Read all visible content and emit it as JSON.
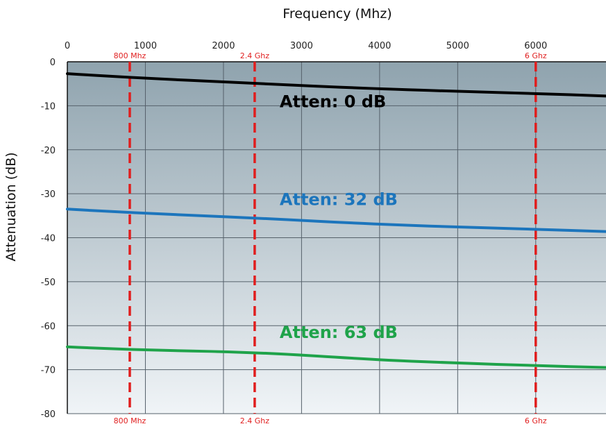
{
  "chart_data": {
    "type": "line",
    "title": "",
    "xlabel": "Frequency (Mhz)",
    "ylabel": "Attenuation (dB)",
    "xlim": [
      0,
      6900
    ],
    "ylim": [
      -80,
      0
    ],
    "x_ticks": [
      0,
      1000,
      2000,
      3000,
      4000,
      5000,
      6000
    ],
    "y_ticks": [
      0,
      -10,
      -20,
      -30,
      -40,
      -50,
      -60,
      -70,
      -80
    ],
    "grid": true,
    "background": {
      "top_color": "#8fa3ae",
      "bottom_color": "#f0f4f7"
    },
    "grid_color": "#55606a",
    "markers": [
      {
        "x": 800,
        "label": "800 Mhz",
        "color": "#e01e1e"
      },
      {
        "x": 2400,
        "label": "2.4 Ghz",
        "color": "#e01e1e"
      },
      {
        "x": 6000,
        "label": "6 Ghz",
        "color": "#e01e1e"
      }
    ],
    "series": [
      {
        "name": "Atten: 0 dB",
        "color": "#000000",
        "label_pos": {
          "x": 2720,
          "y": -10.3
        },
        "points": [
          [
            0,
            -2.7
          ],
          [
            800,
            -3.6
          ],
          [
            2400,
            -4.9
          ],
          [
            4000,
            -6.2
          ],
          [
            6000,
            -7.2
          ],
          [
            6900,
            -7.8
          ]
        ]
      },
      {
        "name": "Atten: 32 dB",
        "color": "#1c75bc",
        "label_pos": {
          "x": 2720,
          "y": -32.6
        },
        "points": [
          [
            0,
            -33.5
          ],
          [
            800,
            -34.3
          ],
          [
            2400,
            -35.5
          ],
          [
            4000,
            -37.0
          ],
          [
            6000,
            -38.1
          ],
          [
            6900,
            -38.6
          ]
        ]
      },
      {
        "name": "Atten: 63 dB",
        "color": "#1fa34a",
        "label_pos": {
          "x": 2720,
          "y": -62.8
        },
        "points": [
          [
            0,
            -64.8
          ],
          [
            800,
            -65.5
          ],
          [
            2400,
            -66.0
          ],
          [
            4000,
            -67.8
          ],
          [
            5000,
            -68.5
          ],
          [
            6000,
            -69.1
          ],
          [
            6900,
            -69.5
          ]
        ]
      }
    ]
  }
}
